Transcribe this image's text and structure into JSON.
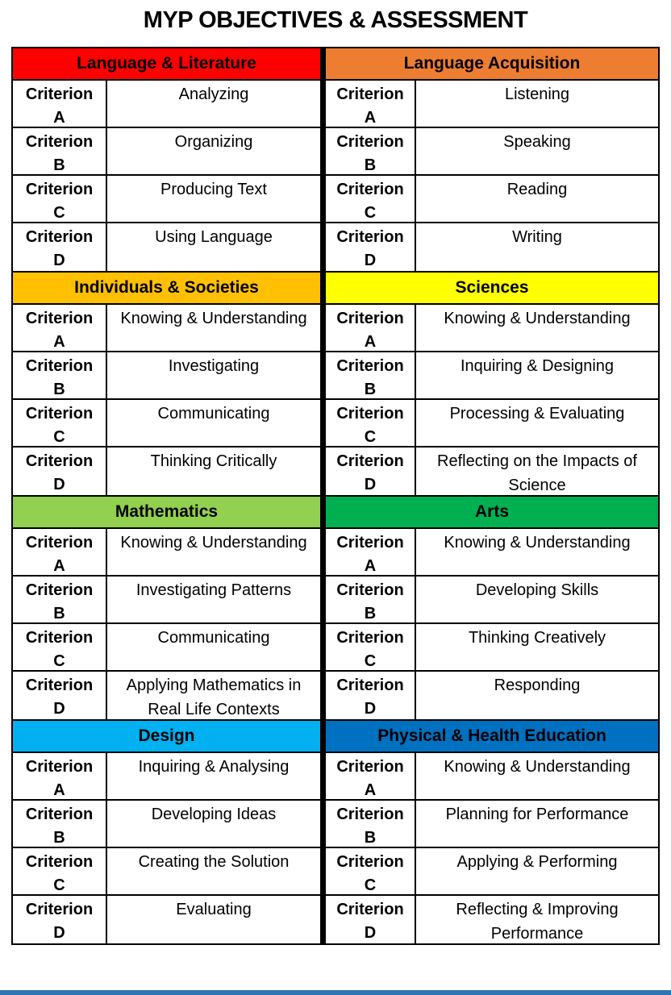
{
  "title": "MYP OBJECTIVES & ASSESSMENT",
  "criterion_label": "Criterion",
  "criterion_letters": [
    "A",
    "B",
    "C",
    "D"
  ],
  "subjects": [
    {
      "name": "Language & Literature",
      "header_color": "#FF0000",
      "objectives": [
        "Analyzing",
        "Organizing",
        "Producing Text",
        "Using Language"
      ]
    },
    {
      "name": "Language Acquisition",
      "header_color": "#ED7D31",
      "objectives": [
        "Listening",
        "Speaking",
        "Reading",
        "Writing"
      ]
    },
    {
      "name": "Individuals & Societies",
      "header_color": "#FFC000",
      "objectives": [
        "Knowing & Understanding",
        "Investigating",
        "Communicating",
        "Thinking Critically"
      ]
    },
    {
      "name": "Sciences",
      "header_color": "#FFFF00",
      "objectives": [
        "Knowing & Understanding",
        "Inquiring & Designing",
        "Processing & Evaluating",
        "Reflecting on the Impacts of Science"
      ]
    },
    {
      "name": "Mathematics",
      "header_color": "#92D050",
      "objectives": [
        "Knowing & Understanding",
        "Investigating Patterns",
        "Communicating",
        "Applying Mathematics in Real Life Contexts"
      ]
    },
    {
      "name": "Arts",
      "header_color": "#00B050",
      "objectives": [
        "Knowing & Understanding",
        "Developing Skills",
        "Thinking Creatively",
        "Responding"
      ]
    },
    {
      "name": "Design",
      "header_color": "#00B0F0",
      "objectives": [
        "Inquiring & Analysing",
        "Developing Ideas",
        "Creating the Solution",
        "Evaluating"
      ]
    },
    {
      "name": "Physical & Health Education",
      "header_color": "#0070C0",
      "objectives": [
        "Knowing & Understanding",
        "Planning for Performance",
        "Applying & Performing",
        "Reflecting & Improving Performance"
      ]
    }
  ],
  "footer": {
    "bar_color": "#2E75B6"
  }
}
